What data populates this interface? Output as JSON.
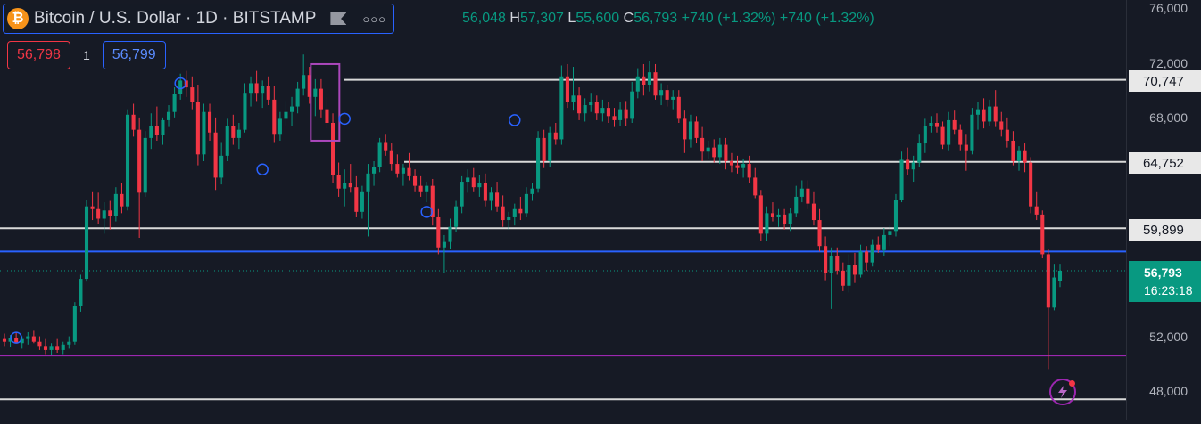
{
  "symbol": {
    "icon": "bitcoin-icon",
    "name": "Bitcoin / U.S. Dollar · 1D · BITSTAMP",
    "menu_icon": "more-dots-icon",
    "flag_icon": "flag-icon"
  },
  "ohlc": {
    "o": "56,048",
    "h_key": "H",
    "h": "57,307",
    "l_key": "L",
    "l": "55,600",
    "c_key": "C",
    "c": "56,793",
    "chg1": "+740 (+1.32%)",
    "chg2": "+740 (+1.32%)"
  },
  "trade": {
    "sell_price": "56,798",
    "qty": "1",
    "buy_price": "56,799"
  },
  "axis": {
    "ticks": [
      "76,000",
      "72,000",
      "68,000",
      "52,000",
      "48,000"
    ]
  },
  "price_labels": {
    "l1": "70,747",
    "l2": "64,752",
    "l3": "59,899",
    "current": "56,793",
    "countdown": "16:23:18"
  },
  "colors": {
    "bg": "#161a25",
    "up": "#089981",
    "down": "#f23645",
    "hline": "#d9d9d9",
    "blue_line": "#2962ff",
    "purple_line": "#9c27b0"
  },
  "chart_data": {
    "type": "candlestick",
    "title": "Bitcoin / U.S. Dollar · 1D · BITSTAMP",
    "y_range": [
      46500,
      78000
    ],
    "candles": [
      {
        "o": 51800,
        "h": 52200,
        "l": 51300,
        "c": 51600
      },
      {
        "o": 51600,
        "h": 52100,
        "l": 51200,
        "c": 51900
      },
      {
        "o": 51900,
        "h": 52300,
        "l": 51500,
        "c": 51500
      },
      {
        "o": 51500,
        "h": 52000,
        "l": 51100,
        "c": 51800
      },
      {
        "o": 51800,
        "h": 52300,
        "l": 51400,
        "c": 52000
      },
      {
        "o": 52000,
        "h": 52400,
        "l": 51500,
        "c": 51600
      },
      {
        "o": 51600,
        "h": 52000,
        "l": 51000,
        "c": 51300
      },
      {
        "o": 51300,
        "h": 51800,
        "l": 50700,
        "c": 51000
      },
      {
        "o": 51000,
        "h": 51500,
        "l": 50600,
        "c": 51300
      },
      {
        "o": 51300,
        "h": 51800,
        "l": 50800,
        "c": 51000
      },
      {
        "o": 51000,
        "h": 51600,
        "l": 50700,
        "c": 51400
      },
      {
        "o": 51400,
        "h": 52000,
        "l": 51100,
        "c": 51600
      },
      {
        "o": 51600,
        "h": 54500,
        "l": 51400,
        "c": 54200
      },
      {
        "o": 54200,
        "h": 56500,
        "l": 53800,
        "c": 56200
      },
      {
        "o": 56200,
        "h": 62000,
        "l": 56000,
        "c": 61500
      },
      {
        "o": 61500,
        "h": 62600,
        "l": 60500,
        "c": 61300
      },
      {
        "o": 61300,
        "h": 62500,
        "l": 60200,
        "c": 60600
      },
      {
        "o": 60600,
        "h": 61800,
        "l": 59500,
        "c": 61200
      },
      {
        "o": 61200,
        "h": 61900,
        "l": 59800,
        "c": 60800
      },
      {
        "o": 60800,
        "h": 62900,
        "l": 60400,
        "c": 62400
      },
      {
        "o": 62400,
        "h": 63200,
        "l": 61000,
        "c": 61500
      },
      {
        "o": 61500,
        "h": 68600,
        "l": 61200,
        "c": 68200
      },
      {
        "o": 68200,
        "h": 69000,
        "l": 66600,
        "c": 67100
      },
      {
        "o": 67100,
        "h": 68000,
        "l": 59200,
        "c": 62500
      },
      {
        "o": 62500,
        "h": 67000,
        "l": 62200,
        "c": 66500
      },
      {
        "o": 66500,
        "h": 68300,
        "l": 65700,
        "c": 67400
      },
      {
        "o": 67400,
        "h": 68800,
        "l": 66300,
        "c": 66700
      },
      {
        "o": 66700,
        "h": 68000,
        "l": 66000,
        "c": 67800
      },
      {
        "o": 67800,
        "h": 68900,
        "l": 67300,
        "c": 68400
      },
      {
        "o": 68400,
        "h": 70200,
        "l": 68000,
        "c": 69700
      },
      {
        "o": 69700,
        "h": 71200,
        "l": 69300,
        "c": 70700
      },
      {
        "o": 70700,
        "h": 71400,
        "l": 69500,
        "c": 70200
      },
      {
        "o": 70200,
        "h": 71000,
        "l": 68600,
        "c": 69100
      },
      {
        "o": 69100,
        "h": 70400,
        "l": 64500,
        "c": 65300
      },
      {
        "o": 65300,
        "h": 69000,
        "l": 64800,
        "c": 68400
      },
      {
        "o": 68400,
        "h": 69000,
        "l": 66300,
        "c": 66900
      },
      {
        "o": 66900,
        "h": 68000,
        "l": 62700,
        "c": 63600
      },
      {
        "o": 63600,
        "h": 66200,
        "l": 63100,
        "c": 65200
      },
      {
        "o": 65200,
        "h": 67900,
        "l": 64800,
        "c": 67400
      },
      {
        "o": 67400,
        "h": 68200,
        "l": 66000,
        "c": 66500
      },
      {
        "o": 66500,
        "h": 67600,
        "l": 65700,
        "c": 67100
      },
      {
        "o": 67100,
        "h": 70500,
        "l": 66900,
        "c": 69800
      },
      {
        "o": 69800,
        "h": 71000,
        "l": 68800,
        "c": 70500
      },
      {
        "o": 70500,
        "h": 71400,
        "l": 69200,
        "c": 69800
      },
      {
        "o": 69800,
        "h": 70700,
        "l": 68700,
        "c": 70300
      },
      {
        "o": 70300,
        "h": 71000,
        "l": 68900,
        "c": 69300
      },
      {
        "o": 69300,
        "h": 70300,
        "l": 66200,
        "c": 66800
      },
      {
        "o": 66800,
        "h": 68400,
        "l": 66300,
        "c": 67900
      },
      {
        "o": 67900,
        "h": 69200,
        "l": 67400,
        "c": 68400
      },
      {
        "o": 68400,
        "h": 69500,
        "l": 67400,
        "c": 68800
      },
      {
        "o": 68800,
        "h": 70600,
        "l": 68300,
        "c": 70100
      },
      {
        "o": 70100,
        "h": 72600,
        "l": 69600,
        "c": 71100
      },
      {
        "o": 71100,
        "h": 71700,
        "l": 69000,
        "c": 69500
      },
      {
        "o": 69500,
        "h": 70800,
        "l": 68100,
        "c": 70100
      },
      {
        "o": 70100,
        "h": 70800,
        "l": 68000,
        "c": 68600
      },
      {
        "o": 68600,
        "h": 69500,
        "l": 67200,
        "c": 67600
      },
      {
        "o": 67600,
        "h": 68300,
        "l": 63200,
        "c": 63800
      },
      {
        "o": 63800,
        "h": 64700,
        "l": 62200,
        "c": 62800
      },
      {
        "o": 62800,
        "h": 64200,
        "l": 61500,
        "c": 63200
      },
      {
        "o": 63200,
        "h": 64600,
        "l": 62500,
        "c": 62900
      },
      {
        "o": 62900,
        "h": 63700,
        "l": 60700,
        "c": 61100
      },
      {
        "o": 61100,
        "h": 63000,
        "l": 60600,
        "c": 62600
      },
      {
        "o": 62600,
        "h": 64600,
        "l": 59300,
        "c": 63900
      },
      {
        "o": 63900,
        "h": 64800,
        "l": 63000,
        "c": 64400
      },
      {
        "o": 64400,
        "h": 66500,
        "l": 64000,
        "c": 66200
      },
      {
        "o": 66200,
        "h": 66800,
        "l": 65200,
        "c": 65600
      },
      {
        "o": 65600,
        "h": 66100,
        "l": 64100,
        "c": 64600
      },
      {
        "o": 64600,
        "h": 65300,
        "l": 63600,
        "c": 63900
      },
      {
        "o": 63900,
        "h": 64600,
        "l": 63000,
        "c": 64300
      },
      {
        "o": 64300,
        "h": 65400,
        "l": 63400,
        "c": 63700
      },
      {
        "o": 63700,
        "h": 64200,
        "l": 62600,
        "c": 63000
      },
      {
        "o": 63000,
        "h": 63700,
        "l": 62200,
        "c": 62600
      },
      {
        "o": 62600,
        "h": 63300,
        "l": 61800,
        "c": 63000
      },
      {
        "o": 63000,
        "h": 63500,
        "l": 60100,
        "c": 60700
      },
      {
        "o": 60700,
        "h": 61300,
        "l": 58000,
        "c": 58500
      },
      {
        "o": 58500,
        "h": 59400,
        "l": 56600,
        "c": 58900
      },
      {
        "o": 58900,
        "h": 60600,
        "l": 58400,
        "c": 60000
      },
      {
        "o": 60000,
        "h": 61900,
        "l": 59600,
        "c": 61500
      },
      {
        "o": 61500,
        "h": 63700,
        "l": 61000,
        "c": 63300
      },
      {
        "o": 63300,
        "h": 64200,
        "l": 62500,
        "c": 63600
      },
      {
        "o": 63600,
        "h": 64300,
        "l": 62600,
        "c": 62900
      },
      {
        "o": 62900,
        "h": 63800,
        "l": 62200,
        "c": 63200
      },
      {
        "o": 63200,
        "h": 63900,
        "l": 61500,
        "c": 61900
      },
      {
        "o": 61900,
        "h": 62900,
        "l": 61200,
        "c": 62500
      },
      {
        "o": 62500,
        "h": 63300,
        "l": 61100,
        "c": 61500
      },
      {
        "o": 61500,
        "h": 62300,
        "l": 60000,
        "c": 60500
      },
      {
        "o": 60500,
        "h": 61100,
        "l": 59800,
        "c": 60700
      },
      {
        "o": 60700,
        "h": 61700,
        "l": 60100,
        "c": 61300
      },
      {
        "o": 61300,
        "h": 62200,
        "l": 60500,
        "c": 61000
      },
      {
        "o": 61000,
        "h": 62900,
        "l": 60700,
        "c": 62400
      },
      {
        "o": 62400,
        "h": 63200,
        "l": 61900,
        "c": 62800
      },
      {
        "o": 62800,
        "h": 67000,
        "l": 62500,
        "c": 66500
      },
      {
        "o": 66500,
        "h": 67100,
        "l": 64300,
        "c": 64800
      },
      {
        "o": 64800,
        "h": 67300,
        "l": 64400,
        "c": 66900
      },
      {
        "o": 66900,
        "h": 67600,
        "l": 66000,
        "c": 66400
      },
      {
        "o": 66400,
        "h": 71800,
        "l": 66000,
        "c": 71000
      },
      {
        "o": 71000,
        "h": 71900,
        "l": 68700,
        "c": 69100
      },
      {
        "o": 69100,
        "h": 71700,
        "l": 68500,
        "c": 69600
      },
      {
        "o": 69600,
        "h": 70200,
        "l": 67800,
        "c": 68300
      },
      {
        "o": 68300,
        "h": 69400,
        "l": 67700,
        "c": 68900
      },
      {
        "o": 68900,
        "h": 69800,
        "l": 68400,
        "c": 69100
      },
      {
        "o": 69100,
        "h": 69600,
        "l": 67800,
        "c": 68300
      },
      {
        "o": 68300,
        "h": 69300,
        "l": 67700,
        "c": 68700
      },
      {
        "o": 68700,
        "h": 69100,
        "l": 67600,
        "c": 68100
      },
      {
        "o": 68100,
        "h": 68700,
        "l": 67300,
        "c": 67800
      },
      {
        "o": 67800,
        "h": 69100,
        "l": 67400,
        "c": 68600
      },
      {
        "o": 68600,
        "h": 69200,
        "l": 67400,
        "c": 67900
      },
      {
        "o": 67900,
        "h": 70600,
        "l": 67600,
        "c": 69900
      },
      {
        "o": 69900,
        "h": 71600,
        "l": 69400,
        "c": 71000
      },
      {
        "o": 71000,
        "h": 71900,
        "l": 69600,
        "c": 70400
      },
      {
        "o": 70400,
        "h": 72100,
        "l": 69900,
        "c": 71300
      },
      {
        "o": 71300,
        "h": 71900,
        "l": 69300,
        "c": 69600
      },
      {
        "o": 69600,
        "h": 70500,
        "l": 68900,
        "c": 70000
      },
      {
        "o": 70000,
        "h": 70400,
        "l": 68800,
        "c": 69300
      },
      {
        "o": 69300,
        "h": 70000,
        "l": 68600,
        "c": 69500
      },
      {
        "o": 69500,
        "h": 70000,
        "l": 67600,
        "c": 67900
      },
      {
        "o": 67900,
        "h": 68500,
        "l": 65400,
        "c": 66400
      },
      {
        "o": 66400,
        "h": 68200,
        "l": 65800,
        "c": 67700
      },
      {
        "o": 67700,
        "h": 68100,
        "l": 66100,
        "c": 66500
      },
      {
        "o": 66500,
        "h": 67300,
        "l": 64800,
        "c": 65500
      },
      {
        "o": 65500,
        "h": 66300,
        "l": 65000,
        "c": 65800
      },
      {
        "o": 65800,
        "h": 66400,
        "l": 64700,
        "c": 65100
      },
      {
        "o": 65100,
        "h": 66500,
        "l": 64600,
        "c": 66000
      },
      {
        "o": 66000,
        "h": 66500,
        "l": 64200,
        "c": 64800
      },
      {
        "o": 64800,
        "h": 65400,
        "l": 64000,
        "c": 64500
      },
      {
        "o": 64500,
        "h": 65200,
        "l": 63900,
        "c": 64300
      },
      {
        "o": 64300,
        "h": 65000,
        "l": 63600,
        "c": 64600
      },
      {
        "o": 64600,
        "h": 65200,
        "l": 63200,
        "c": 63600
      },
      {
        "o": 63600,
        "h": 64300,
        "l": 62100,
        "c": 62300
      },
      {
        "o": 62300,
        "h": 62700,
        "l": 59000,
        "c": 59500
      },
      {
        "o": 59500,
        "h": 61500,
        "l": 59000,
        "c": 61000
      },
      {
        "o": 61000,
        "h": 61800,
        "l": 60400,
        "c": 60700
      },
      {
        "o": 60700,
        "h": 61300,
        "l": 60000,
        "c": 60900
      },
      {
        "o": 60900,
        "h": 61300,
        "l": 59800,
        "c": 60200
      },
      {
        "o": 60200,
        "h": 61400,
        "l": 59700,
        "c": 61000
      },
      {
        "o": 61000,
        "h": 63000,
        "l": 60700,
        "c": 62200
      },
      {
        "o": 62200,
        "h": 63400,
        "l": 61800,
        "c": 62800
      },
      {
        "o": 62800,
        "h": 63400,
        "l": 61300,
        "c": 61700
      },
      {
        "o": 61700,
        "h": 62600,
        "l": 60100,
        "c": 60500
      },
      {
        "o": 60500,
        "h": 61300,
        "l": 58200,
        "c": 58600
      },
      {
        "o": 58600,
        "h": 59300,
        "l": 56100,
        "c": 56600
      },
      {
        "o": 56600,
        "h": 58500,
        "l": 54000,
        "c": 57900
      },
      {
        "o": 57900,
        "h": 58500,
        "l": 56500,
        "c": 56800
      },
      {
        "o": 56800,
        "h": 57400,
        "l": 55300,
        "c": 55700
      },
      {
        "o": 55700,
        "h": 58000,
        "l": 55200,
        "c": 57200
      },
      {
        "o": 57200,
        "h": 58100,
        "l": 55900,
        "c": 56500
      },
      {
        "o": 56500,
        "h": 58700,
        "l": 56300,
        "c": 58200
      },
      {
        "o": 58200,
        "h": 58600,
        "l": 56800,
        "c": 57400
      },
      {
        "o": 57400,
        "h": 59100,
        "l": 57100,
        "c": 58700
      },
      {
        "o": 58700,
        "h": 59300,
        "l": 58100,
        "c": 58300
      },
      {
        "o": 58300,
        "h": 59900,
        "l": 57900,
        "c": 59400
      },
      {
        "o": 59400,
        "h": 60100,
        "l": 58600,
        "c": 59700
      },
      {
        "o": 59700,
        "h": 62400,
        "l": 59300,
        "c": 62000
      },
      {
        "o": 62000,
        "h": 65500,
        "l": 61800,
        "c": 64900
      },
      {
        "o": 64900,
        "h": 65800,
        "l": 63800,
        "c": 64200
      },
      {
        "o": 64200,
        "h": 65200,
        "l": 63300,
        "c": 64700
      },
      {
        "o": 64700,
        "h": 66800,
        "l": 64400,
        "c": 66100
      },
      {
        "o": 66100,
        "h": 67900,
        "l": 65400,
        "c": 67400
      },
      {
        "o": 67400,
        "h": 68100,
        "l": 66900,
        "c": 67600
      },
      {
        "o": 67600,
        "h": 68300,
        "l": 66900,
        "c": 67300
      },
      {
        "o": 67300,
        "h": 67700,
        "l": 65700,
        "c": 66000
      },
      {
        "o": 66000,
        "h": 68400,
        "l": 65600,
        "c": 67800
      },
      {
        "o": 67800,
        "h": 68500,
        "l": 66800,
        "c": 67100
      },
      {
        "o": 67100,
        "h": 67500,
        "l": 65600,
        "c": 66000
      },
      {
        "o": 66000,
        "h": 66800,
        "l": 64100,
        "c": 65600
      },
      {
        "o": 65600,
        "h": 68700,
        "l": 65300,
        "c": 68200
      },
      {
        "o": 68200,
        "h": 69100,
        "l": 67100,
        "c": 68600
      },
      {
        "o": 68600,
        "h": 69400,
        "l": 67200,
        "c": 67700
      },
      {
        "o": 67700,
        "h": 69300,
        "l": 67400,
        "c": 68800
      },
      {
        "o": 68800,
        "h": 70000,
        "l": 67300,
        "c": 67700
      },
      {
        "o": 67700,
        "h": 68400,
        "l": 66600,
        "c": 67100
      },
      {
        "o": 67100,
        "h": 68000,
        "l": 65800,
        "c": 66300
      },
      {
        "o": 66300,
        "h": 67000,
        "l": 64500,
        "c": 64800
      },
      {
        "o": 64800,
        "h": 65900,
        "l": 64100,
        "c": 65600
      },
      {
        "o": 65600,
        "h": 66100,
        "l": 64000,
        "c": 64700
      },
      {
        "o": 64700,
        "h": 65100,
        "l": 61000,
        "c": 61500
      },
      {
        "o": 61500,
        "h": 62600,
        "l": 60500,
        "c": 60900
      },
      {
        "o": 60900,
        "h": 61200,
        "l": 57700,
        "c": 58000
      },
      {
        "o": 58000,
        "h": 58400,
        "l": 49600,
        "c": 54100
      },
      {
        "o": 54100,
        "h": 57300,
        "l": 53900,
        "c": 56300
      },
      {
        "o": 56048,
        "h": 57307,
        "l": 55600,
        "c": 56793
      }
    ]
  }
}
